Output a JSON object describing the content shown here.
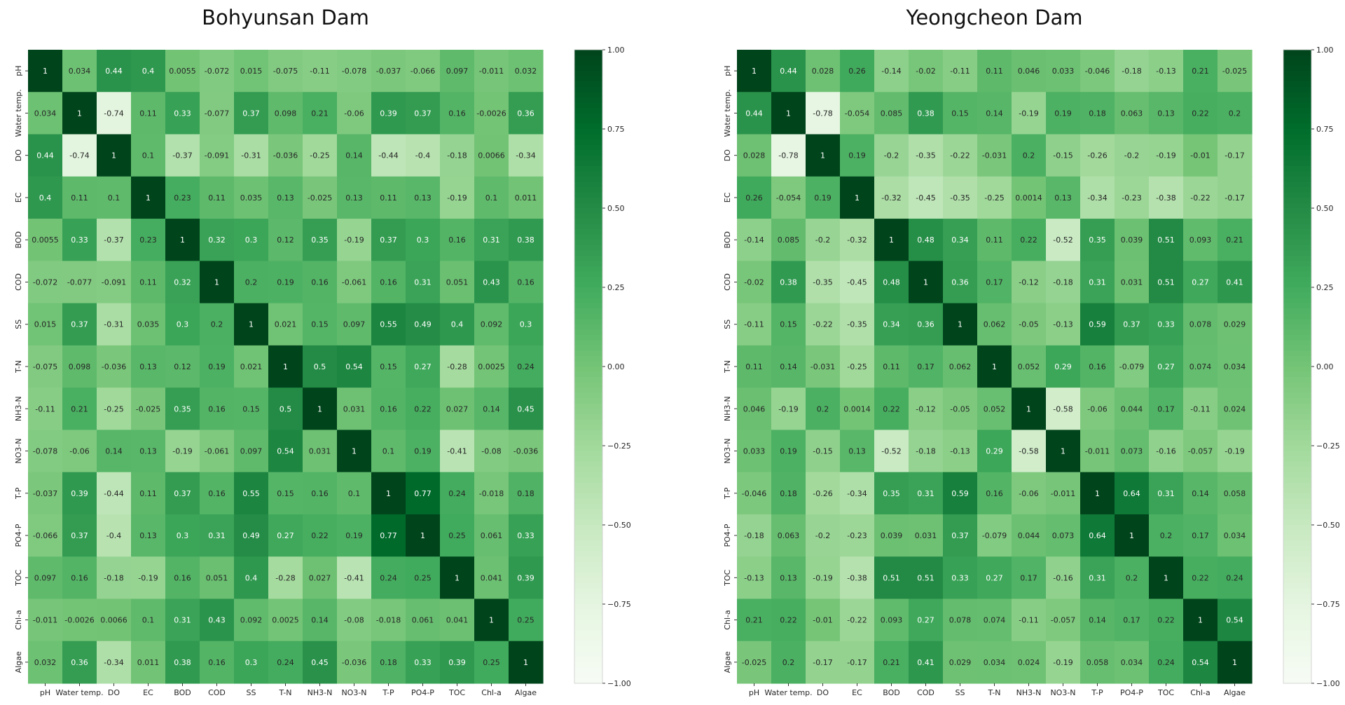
{
  "labels": [
    "pH",
    "Water temp.",
    "DO",
    "EC",
    "BOD",
    "COD",
    "SS",
    "T-N",
    "NH3-N",
    "NO3-N",
    "T-P",
    "PO4-P",
    "TOC",
    "Chl-a",
    "Algae"
  ],
  "colorbar_ticks": [
    "1.00",
    "0.75",
    "0.50",
    "0.25",
    "0.00",
    "−0.25",
    "−0.50",
    "−0.75",
    "−1.00"
  ],
  "colormap": "Greens",
  "chart_data": [
    {
      "type": "heatmap",
      "title": "Bohyunsan Dam",
      "vmin": -1,
      "vmax": 1,
      "values": [
        [
          "1",
          "0.034",
          "0.44",
          "0.4",
          "0.0055",
          "-0.072",
          "0.015",
          "-0.075",
          "-0.11",
          "-0.078",
          "-0.037",
          "-0.066",
          "0.097",
          "-0.011",
          "0.032"
        ],
        [
          "0.034",
          "1",
          "-0.74",
          "0.11",
          "0.33",
          "-0.077",
          "0.37",
          "0.098",
          "0.21",
          "-0.06",
          "0.39",
          "0.37",
          "0.16",
          "-0.0026",
          "0.36"
        ],
        [
          "0.44",
          "-0.74",
          "1",
          "0.1",
          "-0.37",
          "-0.091",
          "-0.31",
          "-0.036",
          "-0.25",
          "0.14",
          "-0.44",
          "-0.4",
          "-0.18",
          "0.0066",
          "-0.34"
        ],
        [
          "0.4",
          "0.11",
          "0.1",
          "1",
          "0.23",
          "0.11",
          "0.035",
          "0.13",
          "-0.025",
          "0.13",
          "0.11",
          "0.13",
          "-0.19",
          "0.1",
          "0.011"
        ],
        [
          "0.0055",
          "0.33",
          "-0.37",
          "0.23",
          "1",
          "0.32",
          "0.3",
          "0.12",
          "0.35",
          "-0.19",
          "0.37",
          "0.3",
          "0.16",
          "0.31",
          "0.38"
        ],
        [
          "-0.072",
          "-0.077",
          "-0.091",
          "0.11",
          "0.32",
          "1",
          "0.2",
          "0.19",
          "0.16",
          "-0.061",
          "0.16",
          "0.31",
          "0.051",
          "0.43",
          "0.16"
        ],
        [
          "0.015",
          "0.37",
          "-0.31",
          "0.035",
          "0.3",
          "0.2",
          "1",
          "0.021",
          "0.15",
          "0.097",
          "0.55",
          "0.49",
          "0.4",
          "0.092",
          "0.3"
        ],
        [
          "-0.075",
          "0.098",
          "-0.036",
          "0.13",
          "0.12",
          "0.19",
          "0.021",
          "1",
          "0.5",
          "0.54",
          "0.15",
          "0.27",
          "-0.28",
          "0.0025",
          "0.24"
        ],
        [
          "-0.11",
          "0.21",
          "-0.25",
          "-0.025",
          "0.35",
          "0.16",
          "0.15",
          "0.5",
          "1",
          "0.031",
          "0.16",
          "0.22",
          "0.027",
          "0.14",
          "0.45"
        ],
        [
          "-0.078",
          "-0.06",
          "0.14",
          "0.13",
          "-0.19",
          "-0.061",
          "0.097",
          "0.54",
          "0.031",
          "1",
          "0.1",
          "0.19",
          "-0.41",
          "-0.08",
          "-0.036"
        ],
        [
          "-0.037",
          "0.39",
          "-0.44",
          "0.11",
          "0.37",
          "0.16",
          "0.55",
          "0.15",
          "0.16",
          "0.1",
          "1",
          "0.77",
          "0.24",
          "-0.018",
          "0.18"
        ],
        [
          "-0.066",
          "0.37",
          "-0.4",
          "0.13",
          "0.3",
          "0.31",
          "0.49",
          "0.27",
          "0.22",
          "0.19",
          "0.77",
          "1",
          "0.25",
          "0.061",
          "0.33"
        ],
        [
          "0.097",
          "0.16",
          "-0.18",
          "-0.19",
          "0.16",
          "0.051",
          "0.4",
          "-0.28",
          "0.027",
          "-0.41",
          "0.24",
          "0.25",
          "1",
          "0.041",
          "0.39"
        ],
        [
          "-0.011",
          "-0.0026",
          "0.0066",
          "0.1",
          "0.31",
          "0.43",
          "0.092",
          "0.0025",
          "0.14",
          "-0.08",
          "-0.018",
          "0.061",
          "0.041",
          "1",
          "0.25"
        ],
        [
          "0.032",
          "0.36",
          "-0.34",
          "0.011",
          "0.38",
          "0.16",
          "0.3",
          "0.24",
          "0.45",
          "-0.036",
          "0.18",
          "0.33",
          "0.39",
          "0.25",
          "1"
        ]
      ]
    },
    {
      "type": "heatmap",
      "title": "Yeongcheon Dam",
      "vmin": -1,
      "vmax": 1,
      "values": [
        [
          "1",
          "0.44",
          "0.028",
          "0.26",
          "-0.14",
          "-0.02",
          "-0.11",
          "0.11",
          "0.046",
          "0.033",
          "-0.046",
          "-0.18",
          "-0.13",
          "0.21",
          "-0.025"
        ],
        [
          "0.44",
          "1",
          "-0.78",
          "-0.054",
          "0.085",
          "0.38",
          "0.15",
          "0.14",
          "-0.19",
          "0.19",
          "0.18",
          "0.063",
          "0.13",
          "0.22",
          "0.2"
        ],
        [
          "0.028",
          "-0.78",
          "1",
          "0.19",
          "-0.2",
          "-0.35",
          "-0.22",
          "-0.031",
          "0.2",
          "-0.15",
          "-0.26",
          "-0.2",
          "-0.19",
          "-0.01",
          "-0.17"
        ],
        [
          "0.26",
          "-0.054",
          "0.19",
          "1",
          "-0.32",
          "-0.45",
          "-0.35",
          "-0.25",
          "0.0014",
          "0.13",
          "-0.34",
          "-0.23",
          "-0.38",
          "-0.22",
          "-0.17"
        ],
        [
          "-0.14",
          "0.085",
          "-0.2",
          "-0.32",
          "1",
          "0.48",
          "0.34",
          "0.11",
          "0.22",
          "-0.52",
          "0.35",
          "0.039",
          "0.51",
          "0.093",
          "0.21"
        ],
        [
          "-0.02",
          "0.38",
          "-0.35",
          "-0.45",
          "0.48",
          "1",
          "0.36",
          "0.17",
          "-0.12",
          "-0.18",
          "0.31",
          "0.031",
          "0.51",
          "0.27",
          "0.41"
        ],
        [
          "-0.11",
          "0.15",
          "-0.22",
          "-0.35",
          "0.34",
          "0.36",
          "1",
          "0.062",
          "-0.05",
          "-0.13",
          "0.59",
          "0.37",
          "0.33",
          "0.078",
          "0.029"
        ],
        [
          "0.11",
          "0.14",
          "-0.031",
          "-0.25",
          "0.11",
          "0.17",
          "0.062",
          "1",
          "0.052",
          "0.29",
          "0.16",
          "-0.079",
          "0.27",
          "0.074",
          "0.034"
        ],
        [
          "0.046",
          "-0.19",
          "0.2",
          "0.0014",
          "0.22",
          "-0.12",
          "-0.05",
          "0.052",
          "1",
          "-0.58",
          "-0.06",
          "0.044",
          "0.17",
          "-0.11",
          "0.024"
        ],
        [
          "0.033",
          "0.19",
          "-0.15",
          "0.13",
          "-0.52",
          "-0.18",
          "-0.13",
          "0.29",
          "-0.58",
          "1",
          "-0.011",
          "0.073",
          "-0.16",
          "-0.057",
          "-0.19"
        ],
        [
          "-0.046",
          "0.18",
          "-0.26",
          "-0.34",
          "0.35",
          "0.31",
          "0.59",
          "0.16",
          "-0.06",
          "-0.011",
          "1",
          "0.64",
          "0.31",
          "0.14",
          "0.058"
        ],
        [
          "-0.18",
          "0.063",
          "-0.2",
          "-0.23",
          "0.039",
          "0.031",
          "0.37",
          "-0.079",
          "0.044",
          "0.073",
          "0.64",
          "1",
          "0.2",
          "0.17",
          "0.034"
        ],
        [
          "-0.13",
          "0.13",
          "-0.19",
          "-0.38",
          "0.51",
          "0.51",
          "0.33",
          "0.27",
          "0.17",
          "-0.16",
          "0.31",
          "0.2",
          "1",
          "0.22",
          "0.24"
        ],
        [
          "0.21",
          "0.22",
          "-0.01",
          "-0.22",
          "0.093",
          "0.27",
          "0.078",
          "0.074",
          "-0.11",
          "-0.057",
          "0.14",
          "0.17",
          "0.22",
          "1",
          "0.54"
        ],
        [
          "-0.025",
          "0.2",
          "-0.17",
          "-0.17",
          "0.21",
          "0.41",
          "0.029",
          "0.034",
          "0.024",
          "-0.19",
          "0.058",
          "0.034",
          "0.24",
          "0.54",
          "1"
        ]
      ]
    }
  ]
}
